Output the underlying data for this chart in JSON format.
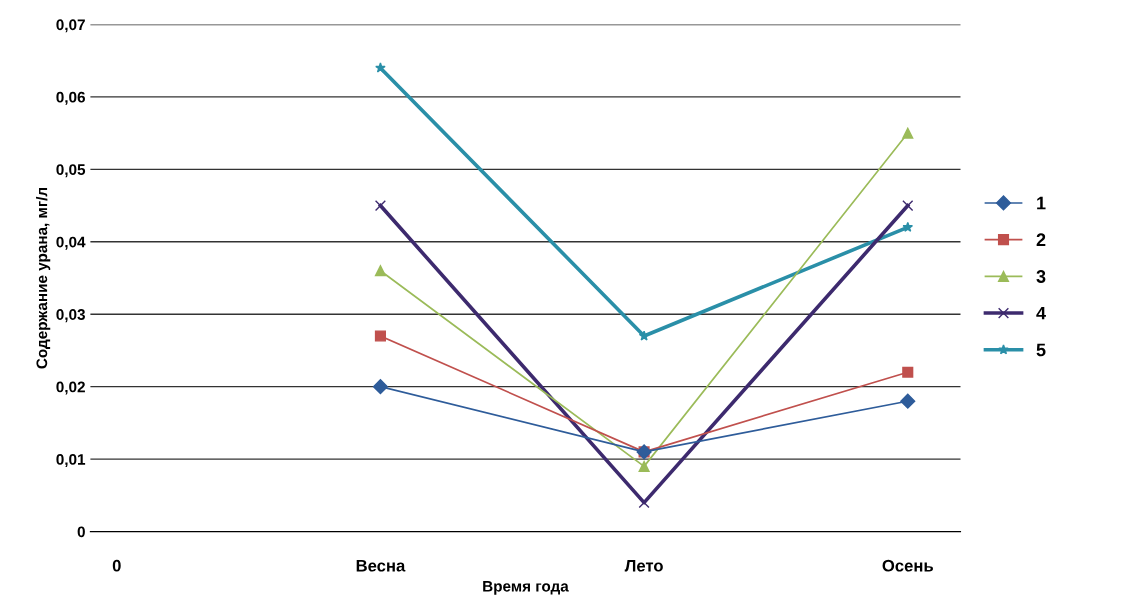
{
  "chart_data": {
    "type": "line",
    "xlabel": "Время года",
    "ylabel": "Содержание урана, мг/л",
    "categories": [
      "0",
      "Весна",
      "Лето",
      "Осень"
    ],
    "series": [
      {
        "name": "1",
        "color": "#2e5c9a",
        "marker": "diamond",
        "values": [
          null,
          0.02,
          0.011,
          0.018
        ]
      },
      {
        "name": "2",
        "color": "#c0504d",
        "marker": "square",
        "values": [
          null,
          0.027,
          0.011,
          0.022
        ]
      },
      {
        "name": "3",
        "color": "#9bbb59",
        "marker": "triangle",
        "values": [
          null,
          0.036,
          0.009,
          0.055
        ]
      },
      {
        "name": "4",
        "color": "#3d2a6e",
        "marker": "cross",
        "values": [
          null,
          0.045,
          0.004,
          0.045
        ]
      },
      {
        "name": "5",
        "color": "#2a8fa8",
        "marker": "star",
        "values": [
          null,
          0.064,
          0.027,
          0.042
        ]
      }
    ],
    "ylim": [
      0,
      0.07
    ],
    "yticks": [
      0,
      {
        "value": 0.01,
        "label": "0,01"
      },
      {
        "value": 0.02,
        "label": "0,02"
      },
      {
        "value": 0.03,
        "label": "0,03"
      },
      {
        "value": 0.04,
        "label": "0,04"
      },
      {
        "value": 0.05,
        "label": "0,05"
      },
      {
        "value": 0.06,
        "label": "0,06"
      },
      {
        "value": 0.07,
        "label": "0,07"
      }
    ],
    "grid": "y",
    "legend": "right",
    "line_style": "solid"
  }
}
